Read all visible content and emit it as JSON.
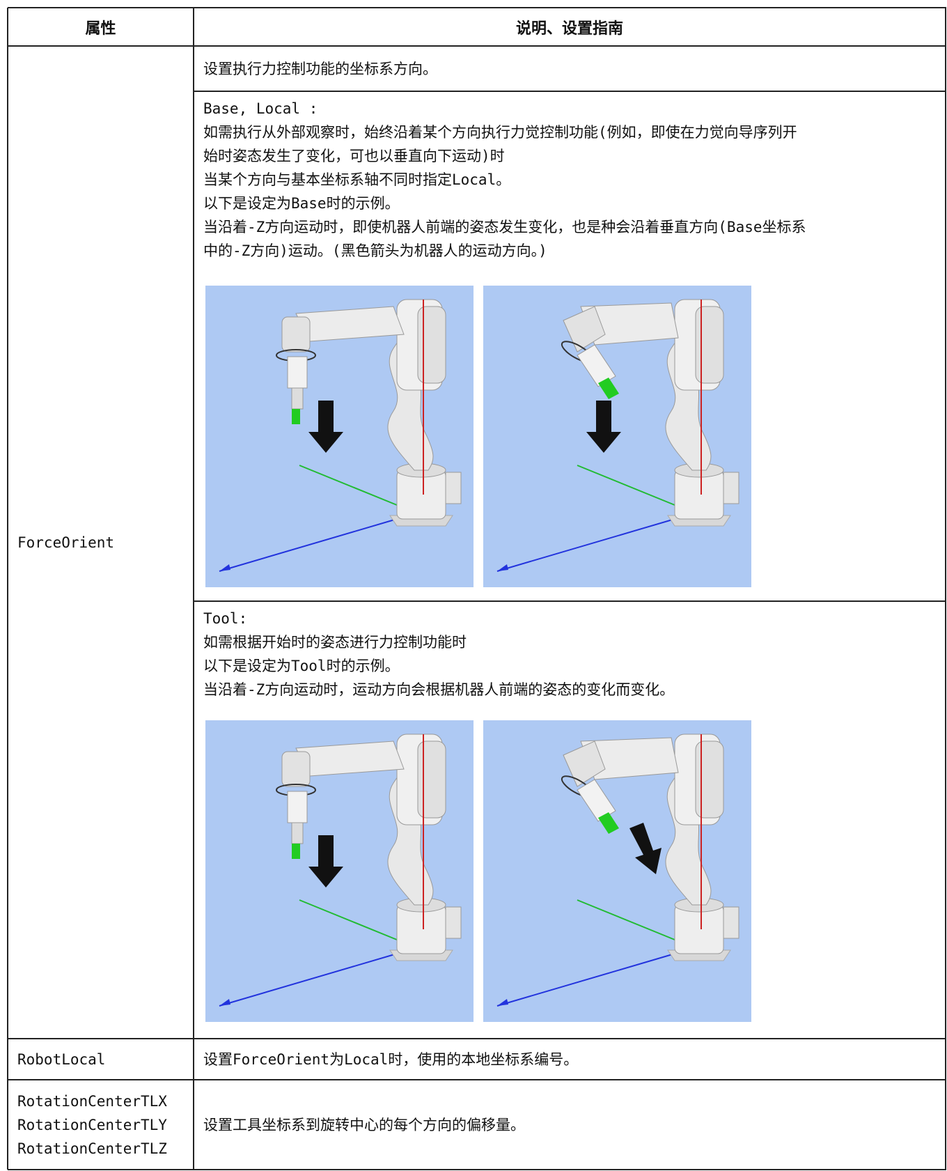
{
  "table": {
    "header": [
      "属性",
      "说明、设置指南"
    ],
    "rows": [
      {
        "name": "ForceOrient",
        "description": [
          [
            "设置执行力控制功能的坐标系方向。"
          ],
          [
            "Base, Local :",
            "如需执行从外部观察时，始终沿着某个方向执行力觉控制功能(例如，即使在力觉向导序列开",
            "始时姿态发生了变化，可也以垂直向下运动)时",
            "当某个方向与基本坐标系轴不同时指定Local。",
            "以下是设定为Base时的示例。",
            "当沿着-Z方向运动时，即使机器人前端的姿态发生变化，也是种会沿着垂直方向(Base坐标系",
            "中的-Z方向)运动。(黑色箭头为机器人的运动方向。)"
          ],
          [
            "Tool:",
            "如需根据开始时的姿态进行力控制功能时",
            "以下是设定为Tool时的示例。",
            "当沿着-Z方向运动时，运动方向会根据机器人前端的姿态的变化而变化。"
          ]
        ]
      },
      {
        "name": "RobotLocal",
        "description": [
          [
            "设置ForceOrient为Local时，使用的本地坐标系编号。"
          ]
        ]
      },
      {
        "name": [
          "RotationCenterTLX",
          "RotationCenterTLY",
          "RotationCenterTLZ"
        ],
        "description": [
          [
            "设置工具坐标系到旋转中心的每个方向的偏移量。"
          ]
        ]
      }
    ]
  }
}
